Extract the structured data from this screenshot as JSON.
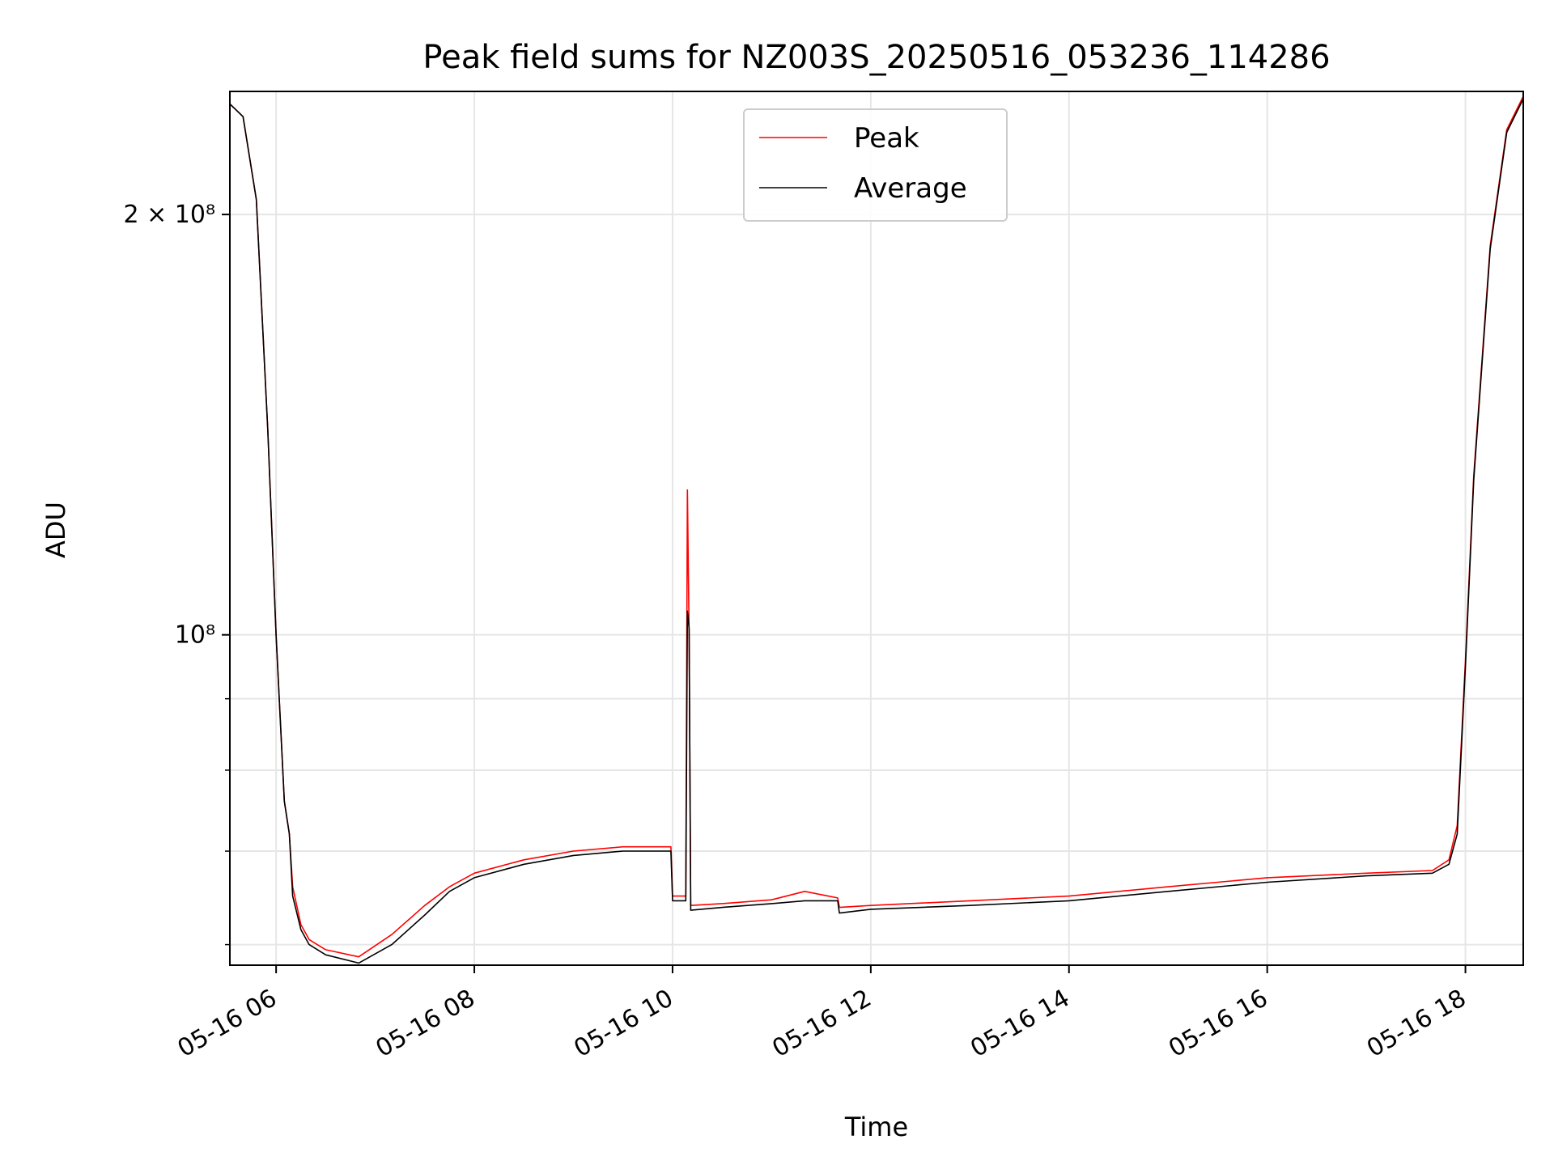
{
  "chart_data": {
    "type": "line",
    "title": "Peak field sums for NZ003S_20250516_053236_114286",
    "xlabel": "Time",
    "ylabel": "ADU",
    "y_scale": "log",
    "ylim": [
      58000000,
      245000000
    ],
    "xlim": [
      "2025-05-16T05:32",
      "2025-05-16T18:35"
    ],
    "x_ticks": [
      "05-16 06",
      "05-16 08",
      "05-16 10",
      "05-16 12",
      "05-16 14",
      "05-16 16",
      "05-16 18"
    ],
    "y_tick_labels": [
      {
        "value": 200000000,
        "label": "2 × 10⁸"
      },
      {
        "value": 100000000,
        "label": "10⁸"
      }
    ],
    "y_minor_ticks": [
      60000000,
      70000000,
      80000000,
      90000000
    ],
    "grid": true,
    "legend": {
      "position": "top-center",
      "entries": [
        "Peak",
        "Average"
      ]
    },
    "colors": {
      "Peak": "#ff0000",
      "Average": "#000000"
    },
    "series": [
      {
        "name": "Peak",
        "x": [
          "2025-05-16T05:32",
          "2025-05-16T05:40",
          "2025-05-16T05:48",
          "2025-05-16T05:55",
          "2025-05-16T06:00",
          "2025-05-16T06:05",
          "2025-05-16T06:08",
          "2025-05-16T06:10",
          "2025-05-16T06:15",
          "2025-05-16T06:20",
          "2025-05-16T06:30",
          "2025-05-16T06:50",
          "2025-05-16T07:10",
          "2025-05-16T07:30",
          "2025-05-16T07:45",
          "2025-05-16T08:00",
          "2025-05-16T08:30",
          "2025-05-16T09:00",
          "2025-05-16T09:30",
          "2025-05-16T09:59",
          "2025-05-16T10:00",
          "2025-05-16T10:08",
          "2025-05-16T10:09",
          "2025-05-16T10:10",
          "2025-05-16T10:11",
          "2025-05-16T10:30",
          "2025-05-16T11:00",
          "2025-05-16T11:20",
          "2025-05-16T11:40",
          "2025-05-16T11:41",
          "2025-05-16T12:00",
          "2025-05-16T13:00",
          "2025-05-16T14:00",
          "2025-05-16T15:00",
          "2025-05-16T16:00",
          "2025-05-16T17:00",
          "2025-05-16T17:40",
          "2025-05-16T17:50",
          "2025-05-16T17:55",
          "2025-05-16T18:00",
          "2025-05-16T18:05",
          "2025-05-16T18:15",
          "2025-05-16T18:25",
          "2025-05-16T18:35"
        ],
        "values": [
          240000000,
          235000000,
          205000000,
          140000000,
          100000000,
          76000000,
          72000000,
          66000000,
          62000000,
          60500000,
          59500000,
          58800000,
          61000000,
          64000000,
          66000000,
          67500000,
          69000000,
          70000000,
          70500000,
          70500000,
          65000000,
          65000000,
          127000000,
          100000000,
          64000000,
          64200000,
          64600000,
          65500000,
          64800000,
          63800000,
          64000000,
          64500000,
          65000000,
          66000000,
          67000000,
          67500000,
          67800000,
          69000000,
          73000000,
          96000000,
          130000000,
          190000000,
          230000000,
          243000000
        ]
      },
      {
        "name": "Average",
        "x": [
          "2025-05-16T05:32",
          "2025-05-16T05:40",
          "2025-05-16T05:48",
          "2025-05-16T05:55",
          "2025-05-16T06:00",
          "2025-05-16T06:05",
          "2025-05-16T06:08",
          "2025-05-16T06:10",
          "2025-05-16T06:15",
          "2025-05-16T06:20",
          "2025-05-16T06:30",
          "2025-05-16T06:50",
          "2025-05-16T07:10",
          "2025-05-16T07:30",
          "2025-05-16T07:45",
          "2025-05-16T08:00",
          "2025-05-16T08:30",
          "2025-05-16T09:00",
          "2025-05-16T09:30",
          "2025-05-16T09:59",
          "2025-05-16T10:00",
          "2025-05-16T10:08",
          "2025-05-16T10:09",
          "2025-05-16T10:10",
          "2025-05-16T10:11",
          "2025-05-16T10:30",
          "2025-05-16T11:00",
          "2025-05-16T11:20",
          "2025-05-16T11:40",
          "2025-05-16T11:41",
          "2025-05-16T12:00",
          "2025-05-16T13:00",
          "2025-05-16T14:00",
          "2025-05-16T15:00",
          "2025-05-16T16:00",
          "2025-05-16T17:00",
          "2025-05-16T17:40",
          "2025-05-16T17:50",
          "2025-05-16T17:55",
          "2025-05-16T18:00",
          "2025-05-16T18:05",
          "2025-05-16T18:15",
          "2025-05-16T18:25",
          "2025-05-16T18:35"
        ],
        "values": [
          240000000,
          235000000,
          205000000,
          140000000,
          100000000,
          76000000,
          72000000,
          65000000,
          61500000,
          60000000,
          59000000,
          58200000,
          60000000,
          63000000,
          65500000,
          67000000,
          68500000,
          69500000,
          70000000,
          70000000,
          64500000,
          64500000,
          104000000,
          101000000,
          63500000,
          63800000,
          64200000,
          64500000,
          64500000,
          63200000,
          63600000,
          64000000,
          64500000,
          65500000,
          66500000,
          67200000,
          67500000,
          68500000,
          72000000,
          95000000,
          129000000,
          189000000,
          229000000,
          242000000
        ]
      }
    ]
  }
}
